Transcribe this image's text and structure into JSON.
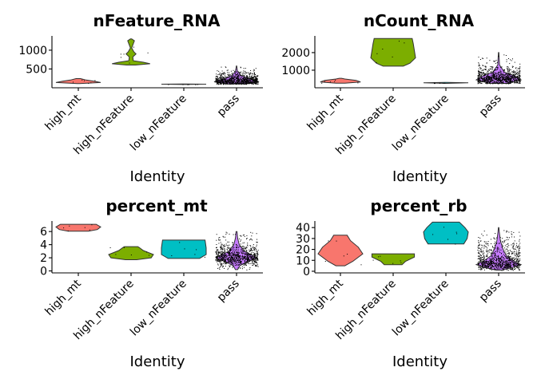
{
  "figure": {
    "xlabel": "Identity"
  },
  "chart_data": [
    {
      "type": "violin",
      "title": "nFeature_RNA",
      "xlabel": "Identity",
      "categories": [
        "high_mt",
        "high_nFeature",
        "low_nFeature",
        "pass"
      ],
      "ylim": [
        0,
        1380
      ],
      "yticks": [
        500,
        1000
      ],
      "colors": [
        "#F8766D",
        "#7CAE00",
        "#00BFC4",
        "#C77CFF"
      ],
      "violins": [
        {
          "category": "high_mt",
          "shape": [
            [
              110,
              0.05
            ],
            [
              140,
              1.0
            ],
            [
              175,
              0.7
            ],
            [
              205,
              0.35
            ],
            [
              245,
              0.1
            ]
          ]
        },
        {
          "category": "high_nFeature",
          "shape": [
            [
              605,
              0.2
            ],
            [
              640,
              0.85
            ],
            [
              680,
              0.55
            ],
            [
              720,
              0.1
            ],
            [
              820,
              0.08
            ],
            [
              900,
              0.22
            ],
            [
              960,
              0.12
            ],
            [
              1060,
              0.03
            ],
            [
              1250,
              0.15
            ],
            [
              1300,
              0.03
            ]
          ]
        },
        {
          "category": "low_nFeature",
          "shape": [
            [
              88,
              0.05
            ],
            [
              95,
              1.0
            ],
            [
              102,
              0.05
            ]
          ]
        },
        {
          "category": "pass",
          "shape": [
            [
              100,
              0.4
            ],
            [
              160,
              1.0
            ],
            [
              240,
              0.6
            ],
            [
              330,
              0.2
            ],
            [
              450,
              0.04
            ],
            [
              580,
              0.01
            ]
          ]
        }
      ]
    },
    {
      "type": "violin",
      "title": "nCount_RNA",
      "xlabel": "Identity",
      "categories": [
        "high_mt",
        "high_nFeature",
        "low_nFeature",
        "pass"
      ],
      "ylim": [
        0,
        2950
      ],
      "yticks": [
        1000,
        2000
      ],
      "colors": [
        "#F8766D",
        "#7CAE00",
        "#00BFC4",
        "#C77CFF"
      ],
      "violins": [
        {
          "category": "high_mt",
          "shape": [
            [
              260,
              0.2
            ],
            [
              330,
              0.9
            ],
            [
              420,
              0.7
            ],
            [
              500,
              0.2
            ],
            [
              540,
              0.05
            ]
          ]
        },
        {
          "category": "high_nFeature",
          "shape": [
            [
              1230,
              0.45
            ],
            [
              1400,
              0.75
            ],
            [
              1700,
              1.0
            ],
            [
              2100,
              0.95
            ],
            [
              2500,
              0.9
            ],
            [
              2800,
              0.85
            ]
          ]
        },
        {
          "category": "low_nFeature",
          "shape": [
            [
              250,
              0.05
            ],
            [
              280,
              1.0
            ],
            [
              310,
              0.05
            ]
          ]
        },
        {
          "category": "pass",
          "shape": [
            [
              250,
              0.4
            ],
            [
              450,
              1.0
            ],
            [
              650,
              0.75
            ],
            [
              900,
              0.25
            ],
            [
              1300,
              0.04
            ],
            [
              2000,
              0.01
            ]
          ]
        }
      ]
    },
    {
      "type": "violin",
      "title": "percent_mt",
      "xlabel": "Identity",
      "categories": [
        "high_mt",
        "high_nFeature",
        "low_nFeature",
        "pass"
      ],
      "ylim": [
        -0.3,
        7.6
      ],
      "yticks": [
        0,
        2,
        4,
        6
      ],
      "colors": [
        "#F8766D",
        "#7CAE00",
        "#00BFC4",
        "#C77CFF"
      ],
      "violins": [
        {
          "category": "high_mt",
          "shape": [
            [
              6.05,
              0.45
            ],
            [
              6.3,
              0.85
            ],
            [
              6.7,
              1.0
            ],
            [
              7.1,
              0.8
            ]
          ]
        },
        {
          "category": "high_nFeature",
          "shape": [
            [
              1.7,
              0.25
            ],
            [
              2.0,
              0.9
            ],
            [
              2.5,
              1.0
            ],
            [
              3.1,
              0.55
            ],
            [
              3.6,
              0.35
            ],
            [
              3.7,
              0.3
            ]
          ]
        },
        {
          "category": "low_nFeature",
          "shape": [
            [
              1.9,
              0.7
            ],
            [
              2.5,
              1.0
            ],
            [
              3.5,
              1.0
            ],
            [
              4.7,
              0.95
            ]
          ]
        },
        {
          "category": "pass",
          "shape": [
            [
              0.2,
              0.05
            ],
            [
              0.8,
              0.15
            ],
            [
              1.4,
              0.5
            ],
            [
              1.9,
              0.9
            ],
            [
              2.3,
              0.75
            ],
            [
              3.0,
              0.35
            ],
            [
              4.0,
              0.12
            ],
            [
              5.0,
              0.05
            ],
            [
              6.0,
              0.02
            ]
          ]
        }
      ]
    },
    {
      "type": "violin",
      "title": "percent_rb",
      "xlabel": "Identity",
      "categories": [
        "high_mt",
        "high_nFeature",
        "low_nFeature",
        "pass"
      ],
      "ylim": [
        -1.5,
        46
      ],
      "yticks": [
        0,
        10,
        20,
        30,
        40
      ],
      "colors": [
        "#F8766D",
        "#7CAE00",
        "#00BFC4",
        "#C77CFF"
      ],
      "violins": [
        {
          "category": "high_mt",
          "shape": [
            [
              5,
              0.2
            ],
            [
              9,
              0.55
            ],
            [
              16,
              1.0
            ],
            [
              22,
              0.8
            ],
            [
              28,
              0.45
            ],
            [
              33,
              0.3
            ]
          ]
        },
        {
          "category": "high_nFeature",
          "shape": [
            [
              6,
              0.4
            ],
            [
              9,
              0.55
            ],
            [
              13,
              0.95
            ],
            [
              16,
              0.95
            ]
          ]
        },
        {
          "category": "low_nFeature",
          "shape": [
            [
              25,
              0.8
            ],
            [
              30,
              0.95
            ],
            [
              36,
              1.0
            ],
            [
              40,
              0.85
            ],
            [
              45,
              0.6
            ]
          ]
        },
        {
          "category": "pass",
          "shape": [
            [
              1,
              0.1
            ],
            [
              3,
              0.55
            ],
            [
              6,
              1.0
            ],
            [
              9,
              0.7
            ],
            [
              14,
              0.35
            ],
            [
              20,
              0.2
            ],
            [
              28,
              0.08
            ],
            [
              36,
              0.03
            ],
            [
              40,
              0.01
            ]
          ]
        }
      ]
    }
  ]
}
